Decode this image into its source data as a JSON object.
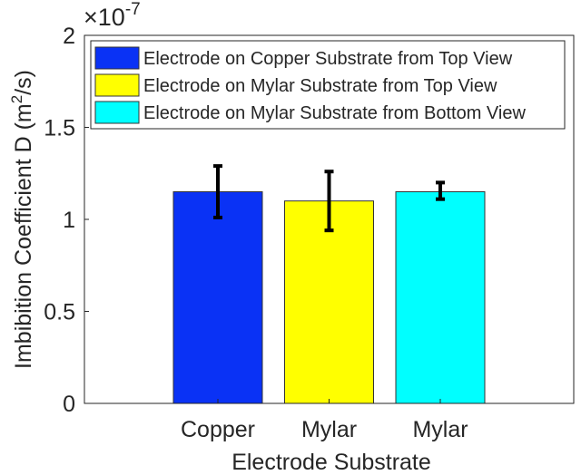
{
  "chart_data": {
    "type": "bar",
    "title": "",
    "xlabel": "Electrode Substrate",
    "ylabel": "Imbibition Coefficient D (m²/s)",
    "ylabel_parts": {
      "main": "Imbibition Coefficient D (m",
      "sup": "2",
      "tail": "/s)"
    },
    "y_multiplier": {
      "base": "×10",
      "exp": "-7"
    },
    "categories": [
      "Copper",
      "Mylar",
      "Mylar"
    ],
    "ylim": [
      0,
      2
    ],
    "xlim": [
      -0.2,
      4.2
    ],
    "yticks": [
      0,
      0.5,
      1,
      1.5,
      2
    ],
    "ytick_labels": [
      "0",
      "0.5",
      "1",
      "1.5",
      "2"
    ],
    "grid": false,
    "legend_position": "top",
    "series": [
      {
        "name": "Electrode on Copper Substrate from Top View",
        "color": "#0a32f5",
        "x": 1,
        "value": 1.15,
        "err_low": 1.01,
        "err_high": 1.29
      },
      {
        "name": "Electrode on Mylar Substrate from Top View",
        "color": "#ffff00",
        "x": 2,
        "value": 1.1,
        "err_low": 0.94,
        "err_high": 1.26
      },
      {
        "name": "Electrode on Mylar Substrate from Bottom View",
        "color": "#00ffff",
        "x": 3,
        "value": 1.15,
        "err_low": 1.11,
        "err_high": 1.2
      }
    ]
  }
}
